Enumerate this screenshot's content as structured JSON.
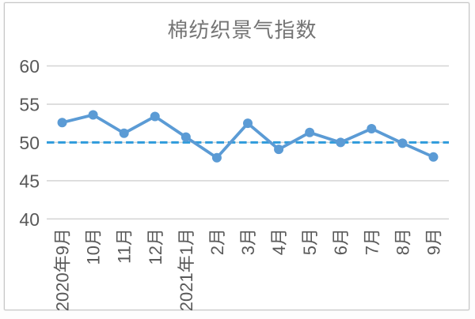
{
  "chart_data": {
    "type": "line",
    "title": "棉纺织景气指数",
    "xlabel": "",
    "ylabel": "",
    "categories": [
      "2020年9月",
      "10月",
      "11月",
      "12月",
      "2021年1月",
      "2月",
      "3月",
      "4月",
      "5月",
      "6月",
      "7月",
      "8月",
      "9月"
    ],
    "series": [
      {
        "values": [
          52.6,
          53.6,
          51.2,
          53.4,
          50.7,
          48.0,
          52.5,
          49.1,
          51.3,
          50.0,
          51.8,
          49.9,
          48.1
        ]
      }
    ],
    "reference_line": {
      "value": 50,
      "style": "dashed"
    },
    "ylim": [
      40,
      60
    ],
    "yticks": [
      40,
      45,
      50,
      55,
      60
    ],
    "grid": true,
    "legend_position": "none",
    "marker": "circle",
    "colors": {
      "series_line": "#5B9BD5",
      "reference_line": "#2E9BDB",
      "gridline": "#D4D4D4",
      "axis_label": "#595959",
      "title": "#747474",
      "frame_border": "#C6C6C6"
    }
  }
}
